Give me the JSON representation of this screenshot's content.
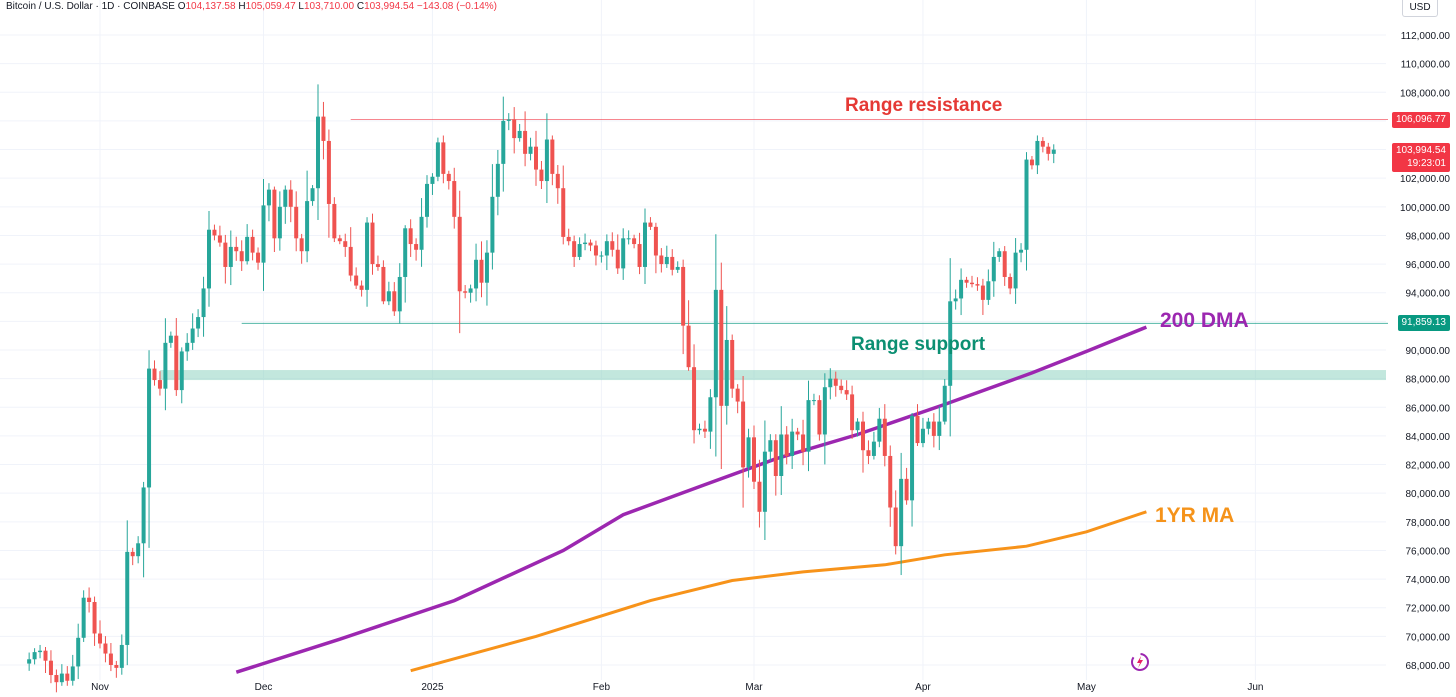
{
  "legend": {
    "symbol": "Bitcoin / U.S. Dollar · 1D · COINBASE",
    "o_key": "O",
    "o_val": "104,137.58",
    "h_key": "H",
    "h_val": "105,059.47",
    "l_key": "L",
    "l_val": "103,710.00",
    "c_key": "C",
    "c_val": "103,994.54",
    "change": "−143.08 (−0.14%)"
  },
  "currency_button": "USD",
  "labels": {
    "resistance_price": "106,096.77",
    "last_price": "103,994.54",
    "countdown": "19:23:01",
    "support_price": "91,859.13"
  },
  "annotations": {
    "range_resistance": "Range resistance",
    "range_support": "Range support",
    "dma200": "200 DMA",
    "ma1yr": "1YR MA"
  },
  "colors": {
    "up": "#26a69a",
    "down": "#ef5350",
    "resistance": "#f23645",
    "support": "#089981",
    "dma200": "#9c27b0",
    "ma1yr": "#f7931a"
  },
  "chart_data": {
    "type": "candlestick",
    "ylim": [
      67000,
      113000
    ],
    "y_ticks": [
      "68,000.00",
      "70,000.00",
      "72,000.00",
      "74,000.00",
      "76,000.00",
      "78,000.00",
      "80,000.00",
      "82,000.00",
      "84,000.00",
      "86,000.00",
      "88,000.00",
      "90,000.00",
      "92,000.00",
      "94,000.00",
      "96,000.00",
      "98,000.00",
      "100,000.00",
      "102,000.00",
      "104,000.00",
      "106,000.00",
      "108,000.00",
      "110,000.00",
      "112,000.00"
    ],
    "x_ticks": [
      "Nov",
      "Dec",
      "2025",
      "Feb",
      "Mar",
      "Apr",
      "May",
      "Jun"
    ],
    "x_range": [
      "2024-10-19",
      "2025-06-13"
    ],
    "x_tick_dates": [
      "2024-11-01",
      "2024-12-01",
      "2025-01-01",
      "2025-02-01",
      "2025-03-01",
      "2025-04-01",
      "2025-05-01",
      "2025-06-01"
    ],
    "resistance_level": 106096.77,
    "support_level": 91859.13,
    "support_zone": [
      87900,
      88600
    ],
    "first_date": "2024-10-19",
    "closes": [
      68400,
      68900,
      69000,
      68300,
      67300,
      66800,
      67400,
      66900,
      67900,
      69900,
      72700,
      72400,
      70200,
      69500,
      68800,
      68000,
      67800,
      69400,
      75900,
      75600,
      76500,
      80400,
      88700,
      87900,
      87300,
      90500,
      91000,
      87200,
      89900,
      90500,
      91500,
      92300,
      94300,
      98400,
      98000,
      97500,
      95800,
      97200,
      96900,
      96200,
      97900,
      96800,
      96100,
      100100,
      101200,
      97800,
      100000,
      101200,
      100000,
      97800,
      96900,
      100400,
      101300,
      106300,
      104600,
      100200,
      97800,
      97600,
      97200,
      95200,
      94500,
      94200,
      98900,
      96000,
      95800,
      93400,
      94100,
      92700,
      95100,
      98500,
      97400,
      97000,
      99300,
      101600,
      102100,
      104500,
      102300,
      101800,
      99300,
      94100,
      94000,
      94300,
      96300,
      94700,
      96800,
      100700,
      103000,
      106000,
      106100,
      104800,
      105300,
      103700,
      104200,
      102600,
      101800,
      104700,
      102300,
      101300,
      97900,
      97600,
      96500,
      97400,
      97500,
      97300,
      96600,
      96600,
      97600,
      97000,
      95700,
      97800,
      97800,
      97400,
      95800,
      98900,
      98600,
      96600,
      96000,
      96500,
      95600,
      95800,
      91700,
      88800,
      84400,
      84500,
      84300,
      86700,
      94200,
      86100,
      90700,
      87300,
      86400,
      81800,
      83900,
      80800,
      78700,
      82900,
      83700,
      81200,
      84100,
      82600,
      84300,
      84100,
      82900,
      86500,
      86500,
      84100,
      87400,
      88000,
      87500,
      87200,
      86900,
      84400,
      85000,
      83000,
      82600,
      83600,
      85200,
      82600,
      79000,
      76300,
      81000,
      79500,
      85400,
      83500,
      84500,
      85000,
      84000,
      85000,
      87500,
      93400,
      93600,
      94900,
      94700,
      94600,
      94500,
      93500,
      94800,
      96500,
      96900,
      95100,
      94300,
      96800,
      97000,
      103300,
      102900,
      104600,
      104200,
      103700,
      103995
    ]
  }
}
